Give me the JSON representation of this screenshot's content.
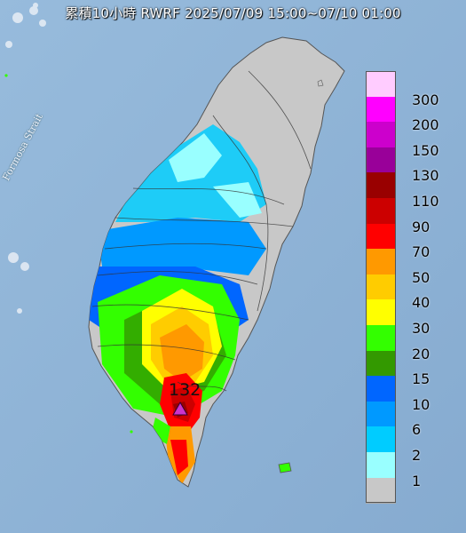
{
  "title": "累積10小時 RWRF 2025/07/09 15:00~07/10 01:00",
  "sea_label": "Formosa Strait",
  "max_marker": {
    "label": "132",
    "icon": "triangle-marker-icon"
  },
  "legend": {
    "levels": [
      {
        "label": "300",
        "color": "#ffccff"
      },
      {
        "label": "200",
        "color": "#ff00ff"
      },
      {
        "label": "150",
        "color": "#cc00cc"
      },
      {
        "label": "130",
        "color": "#990099"
      },
      {
        "label": "110",
        "color": "#990000"
      },
      {
        "label": "90",
        "color": "#cc0000"
      },
      {
        "label": "70",
        "color": "#ff0000"
      },
      {
        "label": "50",
        "color": "#ff9900"
      },
      {
        "label": "40",
        "color": "#ffcc00"
      },
      {
        "label": "30",
        "color": "#ffff00"
      },
      {
        "label": "20",
        "color": "#33ff00"
      },
      {
        "label": "15",
        "color": "#339900"
      },
      {
        "label": "10",
        "color": "#0066ff"
      },
      {
        "label": "6",
        "color": "#0099ff"
      },
      {
        "label": "2",
        "color": "#00ccff"
      },
      {
        "label": "1",
        "color": "#99ffff"
      },
      {
        "label": "",
        "color": "#c8c8c8"
      }
    ]
  },
  "colors": {
    "sea": "#8fb3d6",
    "land_no_rain": "#c8c8c8"
  }
}
